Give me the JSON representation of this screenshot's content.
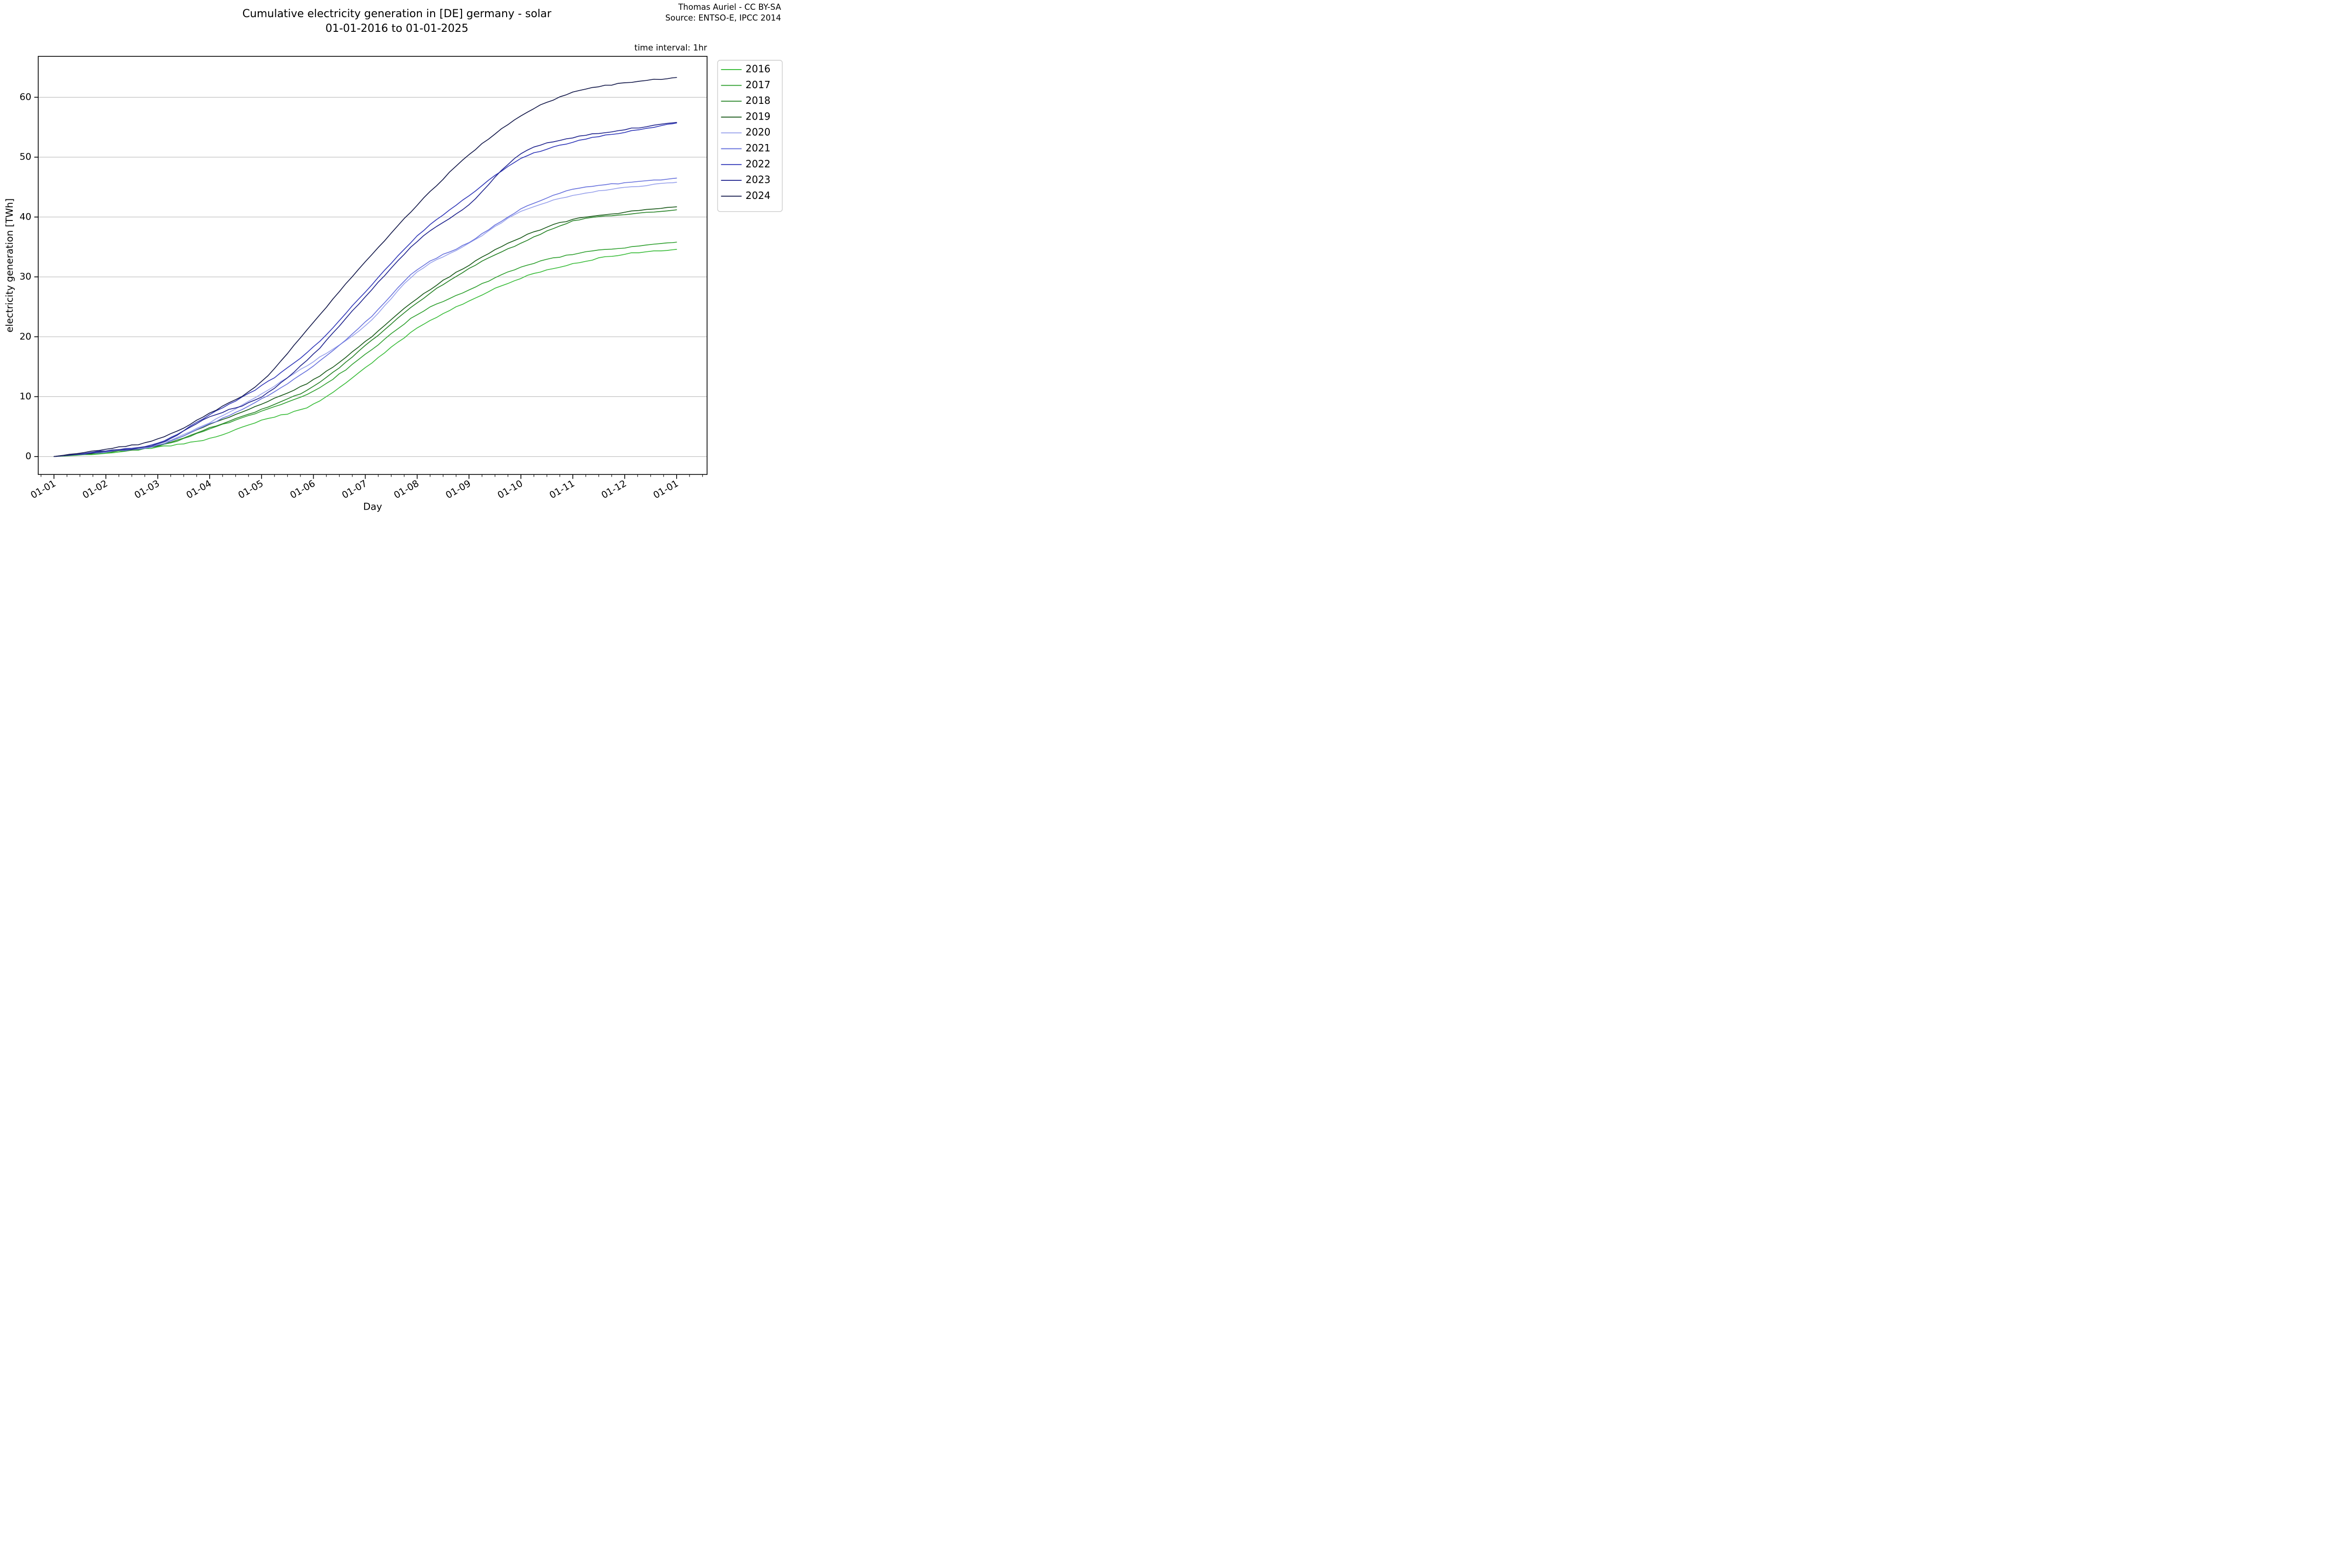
{
  "page": {
    "title_line1": "Cumulative electricity generation in [DE] germany - solar",
    "title_line2": "01-01-2016 to 01-01-2025",
    "credit_line1": "Thomas Auriel - CC BY-SA",
    "credit_line2": "Source: ENTSO-E, IPCC 2014",
    "note": "time interval: 1hr"
  },
  "chart_data": {
    "type": "line",
    "title": "Cumulative electricity generation in [DE] germany - solar 01-01-2016 to 01-01-2025",
    "xlabel": "Day",
    "ylabel": "electricity generation [TWh]",
    "x_tick_labels": [
      "01-01",
      "01-02",
      "01-03",
      "01-04",
      "01-05",
      "01-06",
      "01-07",
      "01-08",
      "01-09",
      "01-10",
      "01-11",
      "01-12",
      "01-01"
    ],
    "y_ticks": [
      0,
      10,
      20,
      30,
      40,
      50,
      60
    ],
    "ylim": [
      -3,
      67
    ],
    "grid": "horizontal-only",
    "legend_position": "outside-upper-right",
    "axis_color": "#000000",
    "grid_color": "#b3b3b3",
    "series": [
      {
        "name": "2016",
        "color": "#3fbe3f",
        "values": [
          0,
          0.6,
          1.55,
          3.0,
          6.0,
          8.7,
          14.8,
          21.4,
          26.0,
          29.8,
          32.2,
          33.8,
          34.6
        ]
      },
      {
        "name": "2017",
        "color": "#34a234",
        "values": [
          0,
          0.7,
          1.7,
          4.6,
          7.6,
          10.9,
          17.0,
          23.7,
          27.8,
          31.6,
          33.8,
          34.9,
          35.8
        ]
      },
      {
        "name": "2018",
        "color": "#2a852a",
        "values": [
          0,
          0.8,
          1.8,
          4.8,
          7.9,
          11.7,
          18.5,
          25.7,
          31.4,
          35.6,
          39.3,
          40.4,
          41.2
        ]
      },
      {
        "name": "2019",
        "color": "#1d5c1d",
        "values": [
          0,
          0.8,
          1.9,
          5.3,
          8.8,
          12.8,
          19.2,
          26.4,
          32.0,
          36.6,
          39.6,
          40.8,
          41.7
        ]
      },
      {
        "name": "2020",
        "color": "#9aa3ec",
        "values": [
          0,
          0.9,
          2.0,
          5.7,
          10.5,
          15.9,
          21.9,
          30.8,
          35.6,
          40.9,
          43.6,
          44.9,
          45.8
        ]
      },
      {
        "name": "2021",
        "color": "#6a74dd",
        "values": [
          0,
          0.8,
          1.9,
          5.4,
          9.6,
          15.1,
          22.4,
          31.2,
          35.8,
          41.3,
          44.6,
          45.7,
          46.5
        ]
      },
      {
        "name": "2022",
        "color": "#353cba",
        "values": [
          0,
          1.0,
          2.2,
          7.0,
          11.8,
          18.3,
          27.5,
          36.8,
          43.6,
          49.7,
          52.5,
          54.2,
          55.7
        ]
      },
      {
        "name": "2023",
        "color": "#23278f",
        "values": [
          0,
          0.9,
          2.1,
          6.6,
          10.0,
          17.1,
          26.7,
          35.9,
          42.1,
          50.6,
          53.2,
          54.6,
          55.8
        ]
      },
      {
        "name": "2024",
        "color": "#171c4d",
        "values": [
          0,
          1.2,
          2.9,
          7.2,
          12.5,
          22.5,
          32.5,
          42.0,
          50.4,
          56.9,
          60.8,
          62.4,
          63.3
        ]
      }
    ]
  }
}
